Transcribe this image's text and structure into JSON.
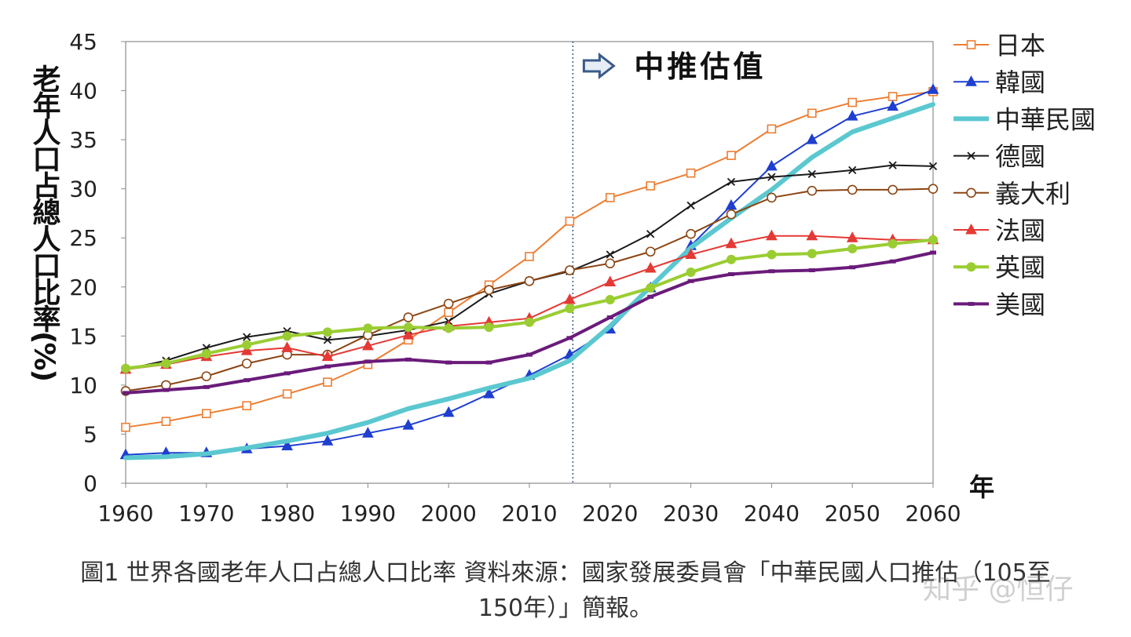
{
  "chart_data": {
    "type": "line",
    "ylabel": "老年人口占總人口比率(%)",
    "xlabel": "年",
    "annotation": "中推估值",
    "projection_start": 2015,
    "xlim": [
      1960,
      2060
    ],
    "ylim": [
      0,
      45
    ],
    "x_ticks": [
      "1960",
      "1970",
      "1980",
      "1990",
      "2000",
      "2010",
      "2020",
      "2030",
      "2040",
      "2050",
      "2060"
    ],
    "y_ticks": [
      "0",
      "5",
      "10",
      "15",
      "20",
      "25",
      "30",
      "35",
      "40",
      "45"
    ],
    "grid": false,
    "legend_position": "right",
    "x": [
      1960,
      1965,
      1970,
      1975,
      1980,
      1985,
      1990,
      1995,
      2000,
      2005,
      2010,
      2015,
      2020,
      2025,
      2030,
      2035,
      2040,
      2045,
      2050,
      2055,
      2060
    ],
    "series": [
      {
        "name": "日本",
        "color": "#ED7D31",
        "marker": "square",
        "width": 2,
        "values": [
          5.7,
          6.3,
          7.1,
          7.9,
          9.1,
          10.3,
          12.1,
          14.6,
          17.4,
          20.2,
          23.1,
          26.7,
          29.1,
          30.3,
          31.6,
          33.4,
          36.1,
          37.7,
          38.8,
          39.4,
          39.9
        ]
      },
      {
        "name": "韓國",
        "color": "#1F3FD0",
        "marker": "triangle",
        "width": 2,
        "values": [
          2.9,
          3.1,
          3.1,
          3.5,
          3.8,
          4.3,
          5.1,
          5.9,
          7.2,
          9.1,
          11.0,
          13.1,
          15.7,
          19.9,
          24.2,
          28.3,
          32.3,
          35.0,
          37.4,
          38.4,
          40.1
        ]
      },
      {
        "name": "中華民國",
        "color": "#5BC8D0",
        "marker": "none",
        "width": 6,
        "values": [
          2.6,
          2.7,
          3.0,
          3.6,
          4.3,
          5.1,
          6.2,
          7.6,
          8.6,
          9.7,
          10.7,
          12.5,
          16.0,
          20.0,
          24.0,
          27.0,
          29.9,
          33.2,
          35.8,
          37.2,
          38.6
        ]
      },
      {
        "name": "德國",
        "color": "#1A1A1A",
        "marker": "cross",
        "width": 2,
        "values": [
          11.6,
          12.5,
          13.8,
          14.9,
          15.5,
          14.6,
          15.0,
          15.6,
          16.5,
          19.3,
          20.6,
          21.6,
          23.3,
          25.4,
          28.3,
          30.7,
          31.2,
          31.5,
          31.9,
          32.4,
          32.3
        ]
      },
      {
        "name": "義大利",
        "color": "#8B4513",
        "marker": "circle",
        "width": 2,
        "values": [
          9.4,
          10.0,
          10.9,
          12.2,
          13.1,
          13.1,
          15.1,
          16.9,
          18.3,
          19.7,
          20.6,
          21.7,
          22.4,
          23.6,
          25.4,
          27.4,
          29.1,
          29.8,
          29.9,
          29.9,
          30.0
        ]
      },
      {
        "name": "法國",
        "color": "#E53935",
        "marker": "triangle",
        "width": 2,
        "values": [
          11.6,
          12.1,
          12.9,
          13.5,
          13.8,
          12.9,
          14.0,
          15.1,
          16.0,
          16.4,
          16.8,
          18.7,
          20.5,
          21.9,
          23.3,
          24.4,
          25.2,
          25.2,
          25.0,
          24.8,
          24.8
        ]
      },
      {
        "name": "英國",
        "color": "#9ACD32",
        "marker": "dot",
        "width": 4,
        "values": [
          11.7,
          12.2,
          13.2,
          14.1,
          15.0,
          15.4,
          15.8,
          15.9,
          15.8,
          15.9,
          16.4,
          17.8,
          18.7,
          19.9,
          21.5,
          22.8,
          23.3,
          23.4,
          23.9,
          24.4,
          24.8
        ]
      },
      {
        "name": "美國",
        "color": "#6A1B7A",
        "marker": "bar",
        "width": 4,
        "values": [
          9.2,
          9.5,
          9.8,
          10.5,
          11.2,
          11.9,
          12.4,
          12.6,
          12.3,
          12.3,
          13.1,
          14.8,
          16.9,
          19.0,
          20.6,
          21.3,
          21.6,
          21.7,
          22.0,
          22.6,
          23.5
        ]
      }
    ]
  },
  "caption": {
    "line1": "圖1 世界各國老年人口占總人口比率 資料來源：國家發展委員會「中華民國人口推估（105至",
    "line2": "150年）」簡報。"
  },
  "watermark": "知乎 @恒仔"
}
